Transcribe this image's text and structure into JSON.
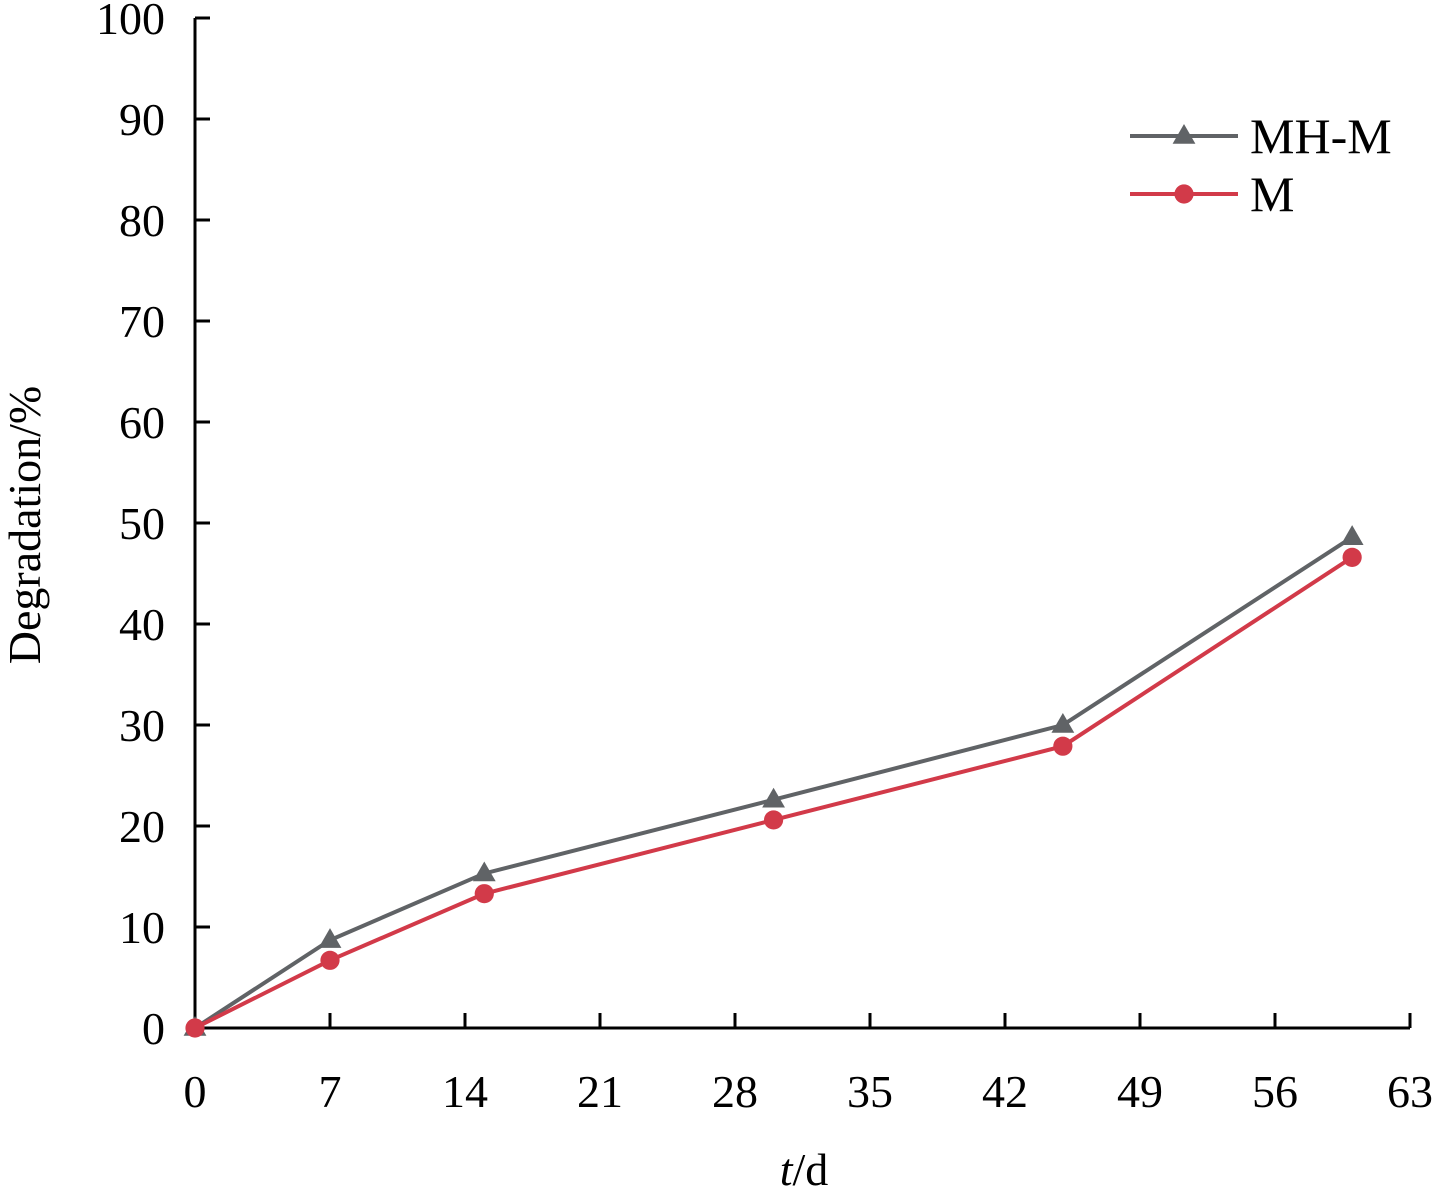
{
  "chart_data": {
    "type": "line",
    "xlabel": {
      "italic": "t",
      "rest": "/d"
    },
    "ylabel": "Degradation/%",
    "xlim": [
      0,
      63
    ],
    "ylim": [
      0,
      100
    ],
    "xticks": [
      0,
      7,
      14,
      21,
      28,
      35,
      42,
      49,
      56,
      63
    ],
    "yticks": [
      0,
      10,
      20,
      30,
      40,
      50,
      60,
      70,
      80,
      90,
      100
    ],
    "grid": false,
    "legend_position": "top-right",
    "series": [
      {
        "name": "MH-M",
        "color": "#606366",
        "marker": "triangle",
        "x": [
          0,
          7,
          15,
          30,
          45,
          60
        ],
        "y": [
          0,
          8.7,
          15.3,
          22.6,
          30.0,
          48.6
        ]
      },
      {
        "name": "M",
        "color": "#d23a49",
        "marker": "circle",
        "x": [
          0,
          7,
          15,
          30,
          45,
          60
        ],
        "y": [
          0,
          6.7,
          13.3,
          20.6,
          27.9,
          46.6
        ]
      }
    ]
  }
}
